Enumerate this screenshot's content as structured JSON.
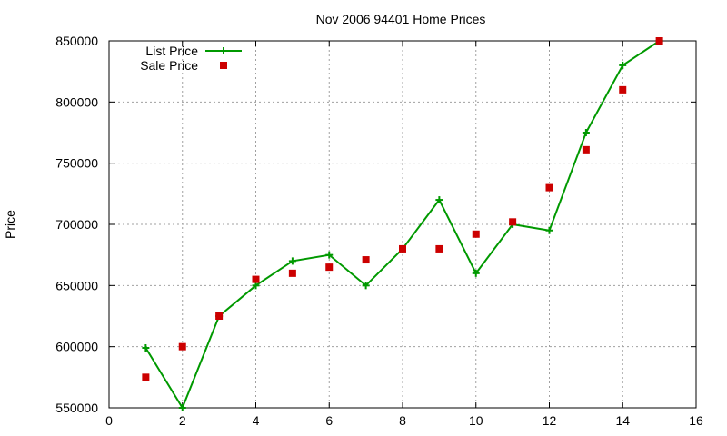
{
  "chart_data": {
    "type": "line",
    "title": "Nov 2006 94401 Home Prices",
    "xlabel": "",
    "ylabel": "Price",
    "xlim": [
      0,
      16
    ],
    "ylim": [
      550000,
      850000
    ],
    "x_ticks": [
      0,
      2,
      4,
      6,
      8,
      10,
      12,
      14,
      16
    ],
    "y_ticks": [
      550000,
      600000,
      650000,
      700000,
      750000,
      800000,
      850000
    ],
    "grid": true,
    "legend_position": "top-left",
    "series": [
      {
        "name": "List Price",
        "style": "line-with-plus-markers",
        "color": "#009900",
        "x": [
          1,
          2,
          3,
          4,
          5,
          6,
          7,
          8,
          9,
          10,
          11,
          12,
          13,
          14,
          15
        ],
        "values": [
          599000,
          550000,
          625000,
          650000,
          670000,
          675000,
          650000,
          680000,
          720000,
          660000,
          700000,
          695000,
          775000,
          830000,
          850000
        ]
      },
      {
        "name": "Sale Price",
        "style": "square-markers",
        "color": "#cc0000",
        "x": [
          1,
          2,
          3,
          4,
          5,
          6,
          7,
          8,
          9,
          10,
          11,
          12,
          13,
          14,
          15
        ],
        "values": [
          575000,
          600000,
          625000,
          655000,
          660000,
          665000,
          671000,
          680000,
          680000,
          692000,
          702000,
          730000,
          761000,
          810000,
          850000
        ]
      }
    ]
  }
}
